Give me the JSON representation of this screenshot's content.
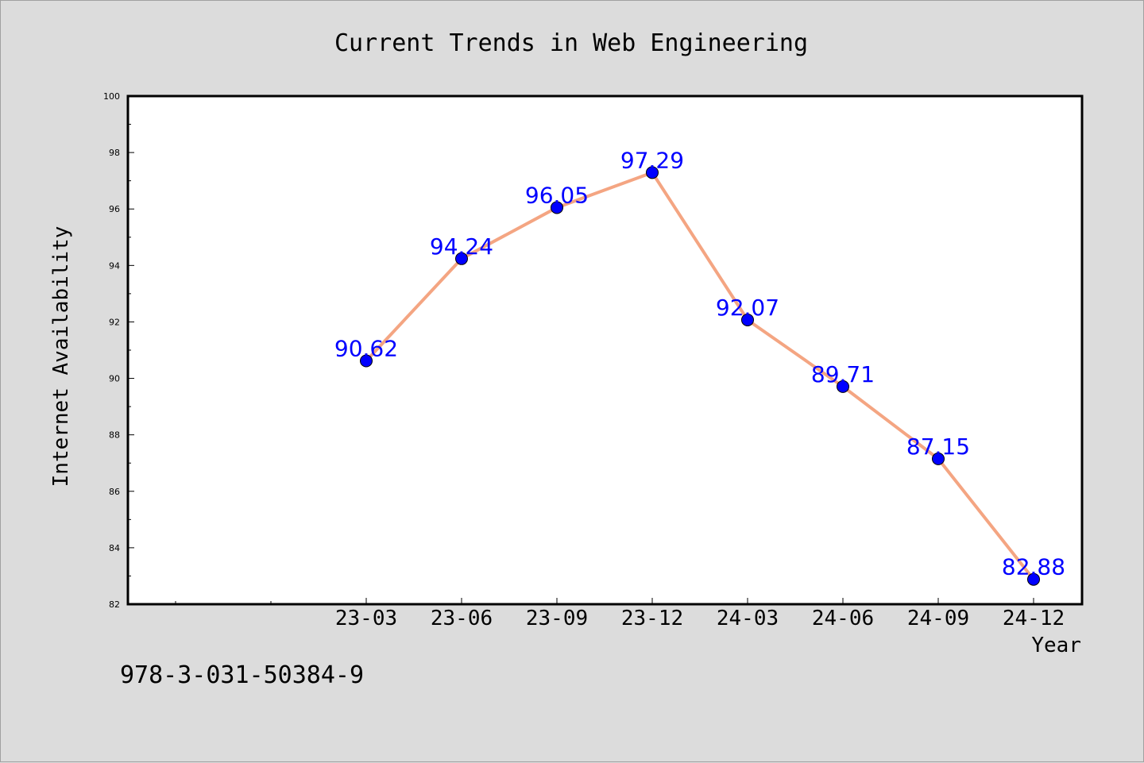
{
  "chart_data": {
    "type": "line",
    "title": "Current Trends in Web Engineering",
    "xlabel": "Year",
    "ylabel": "Internet Availability",
    "categories": [
      "23-03",
      "23-06",
      "23-09",
      "23-12",
      "24-03",
      "24-06",
      "24-09",
      "24-12"
    ],
    "values": [
      90.62,
      94.24,
      96.05,
      97.29,
      92.07,
      89.71,
      87.15,
      82.88
    ],
    "value_labels": [
      "90.62",
      "94.24",
      "96.05",
      "97.29",
      "92.07",
      "89.71",
      "87.15",
      "82.88"
    ],
    "x_slots": 10,
    "first_category_slot": 2,
    "ylim": [
      82,
      100
    ],
    "y_ticks": [
      "82",
      "84",
      "86",
      "88",
      "90",
      "92",
      "94",
      "96",
      "98",
      "100"
    ],
    "grid": false,
    "legend": "none",
    "colors": {
      "line": "#f4a582",
      "marker": "#0000ff",
      "label": "#0000ff",
      "plot_background": "#ffffff",
      "figure_background": "#dcdcdc"
    }
  },
  "footer": {
    "isbn": "978-3-031-50384-9"
  }
}
